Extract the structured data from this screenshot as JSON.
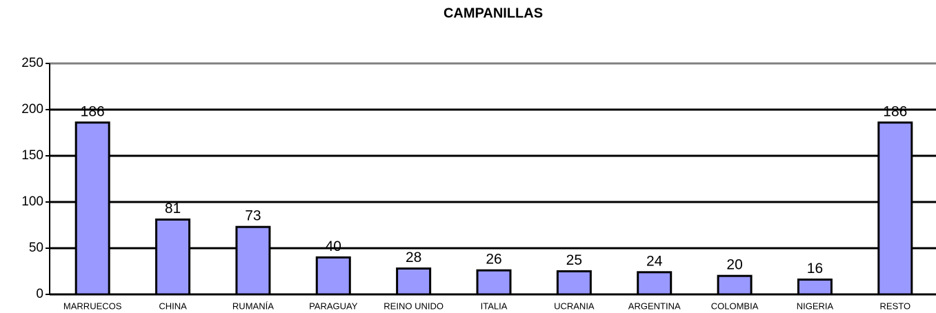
{
  "chart_data": {
    "type": "bar",
    "title": "CAMPANILLAS",
    "categories": [
      "MARRUECOS",
      "CHINA",
      "RUMANÍA",
      "PARAGUAY",
      "REINO UNIDO",
      "ITALIA",
      "UCRANIA",
      "ARGENTINA",
      "COLOMBIA",
      "NIGERIA",
      "RESTO"
    ],
    "values": [
      186,
      81,
      73,
      40,
      28,
      26,
      25,
      24,
      20,
      16,
      186
    ],
    "color": "#9999ff",
    "ylim": [
      0,
      250
    ],
    "yticks": [
      0,
      50,
      100,
      150,
      200,
      250
    ],
    "grid": true
  }
}
